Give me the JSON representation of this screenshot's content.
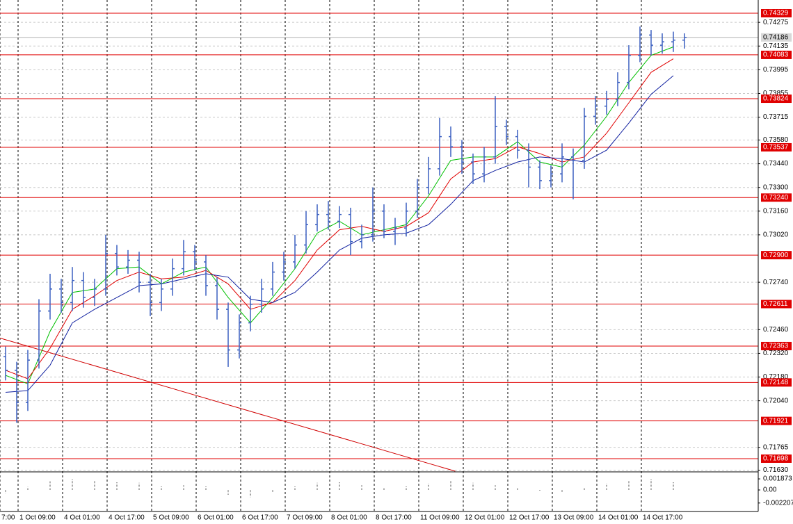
{
  "chart_data": {
    "type": "ohlc",
    "color": "#3a5fc0",
    "open": [
      0.723,
      0.7222,
      0.7203,
      0.7228,
      0.7257,
      0.727,
      0.7262,
      0.7275,
      0.7265,
      0.727,
      0.7291,
      0.7283,
      0.7287,
      0.7274,
      0.7262,
      0.727,
      0.7282,
      0.7292,
      0.7286,
      0.7272,
      0.7258,
      0.7234,
      0.725,
      0.7261,
      0.727,
      0.728,
      0.7286,
      0.7296,
      0.7308,
      0.7314,
      0.731,
      0.7314,
      0.7298,
      0.7302,
      0.7316,
      0.7304,
      0.7306,
      0.7316,
      0.733,
      0.7341,
      0.736,
      0.7354,
      0.7345,
      0.7338,
      0.7348,
      0.7366,
      0.736,
      0.7352,
      0.7342,
      0.7334,
      0.7338,
      0.7348,
      0.7346,
      0.7372,
      0.7378,
      0.7382,
      0.7392,
      0.7408,
      0.742,
      0.7414,
      0.7416,
      0.7417
    ],
    "high": [
      0.7236,
      0.7227,
      0.7234,
      0.7264,
      0.7279,
      0.7276,
      0.7283,
      0.728,
      0.7276,
      0.7302,
      0.7296,
      0.7293,
      0.7292,
      0.7279,
      0.7276,
      0.7288,
      0.7299,
      0.7296,
      0.729,
      0.7277,
      0.7262,
      0.7255,
      0.7266,
      0.7276,
      0.7286,
      0.7292,
      0.7302,
      0.7316,
      0.732,
      0.7322,
      0.7319,
      0.7318,
      0.7308,
      0.733,
      0.732,
      0.7312,
      0.7321,
      0.7335,
      0.7348,
      0.7371,
      0.7366,
      0.7358,
      0.735,
      0.7354,
      0.7384,
      0.737,
      0.7364,
      0.7356,
      0.7346,
      0.7343,
      0.7356,
      0.7353,
      0.7377,
      0.7384,
      0.7387,
      0.7398,
      0.7414,
      0.7425,
      0.7423,
      0.7421,
      0.7422,
      0.7421
    ],
    "low": [
      0.7216,
      0.7191,
      0.7198,
      0.7223,
      0.7252,
      0.7256,
      0.7257,
      0.7259,
      0.726,
      0.7266,
      0.7278,
      0.7279,
      0.7268,
      0.7254,
      0.7257,
      0.7266,
      0.7278,
      0.7281,
      0.7266,
      0.7252,
      0.7224,
      0.7229,
      0.7245,
      0.7256,
      0.7266,
      0.7275,
      0.7282,
      0.7291,
      0.7304,
      0.7305,
      0.7306,
      0.729,
      0.7294,
      0.7298,
      0.73,
      0.7296,
      0.7301,
      0.7312,
      0.7326,
      0.7337,
      0.7348,
      0.7338,
      0.7332,
      0.7333,
      0.7344,
      0.7355,
      0.7347,
      0.733,
      0.7329,
      0.733,
      0.7333,
      0.7323,
      0.7341,
      0.7367,
      0.7373,
      0.7378,
      0.7388,
      0.7404,
      0.7408,
      0.7409,
      0.741,
      0.7412
    ],
    "close": [
      0.7222,
      0.7203,
      0.7228,
      0.7257,
      0.727,
      0.7262,
      0.7275,
      0.7265,
      0.727,
      0.7291,
      0.7283,
      0.7287,
      0.7274,
      0.7262,
      0.727,
      0.7282,
      0.7292,
      0.7286,
      0.7272,
      0.7258,
      0.7234,
      0.725,
      0.7261,
      0.727,
      0.728,
      0.7286,
      0.7296,
      0.7308,
      0.7314,
      0.731,
      0.7314,
      0.7298,
      0.7302,
      0.7316,
      0.7304,
      0.7306,
      0.7316,
      0.733,
      0.7341,
      0.736,
      0.7354,
      0.7345,
      0.7338,
      0.7348,
      0.7366,
      0.736,
      0.7352,
      0.7342,
      0.7334,
      0.7338,
      0.7348,
      0.7346,
      0.7372,
      0.7378,
      0.7382,
      0.7392,
      0.7408,
      0.742,
      0.7414,
      0.7416,
      0.7417,
      0.74186
    ],
    "xlim": [
      -0.5,
      67.625
    ],
    "xticks": [
      {
        "value": -0.5,
        "label": "7:00"
      },
      {
        "value": 1.125,
        "label": "1 Oct 09:00"
      },
      {
        "value": 5.125,
        "label": "4 Oct 01:00"
      },
      {
        "value": 9.125,
        "label": "4 Oct 17:00"
      },
      {
        "value": 13.125,
        "label": "5 Oct 09:00"
      },
      {
        "value": 17.125,
        "label": "6 Oct 01:00"
      },
      {
        "value": 21.125,
        "label": "6 Oct 17:00"
      },
      {
        "value": 25.125,
        "label": "7 Oct 09:00"
      },
      {
        "value": 29.125,
        "label": "8 Oct 01:00"
      },
      {
        "value": 33.125,
        "label": "8 Oct 17:00"
      },
      {
        "value": 37.125,
        "label": "11 Oct 09:00"
      },
      {
        "value": 41.125,
        "label": "12 Oct 01:00"
      },
      {
        "value": 45.125,
        "label": "12 Oct 17:00"
      },
      {
        "value": 49.125,
        "label": "13 Oct 09:00"
      },
      {
        "value": 53.125,
        "label": "14 Oct 01:00"
      },
      {
        "value": 57.125,
        "label": "14 Oct 17:00"
      }
    ],
    "ylim": [
      0.71624,
      0.74407
    ],
    "yticks": [
      0.74275,
      0.74135,
      0.73995,
      0.73855,
      0.73715,
      {
        "value": 0.7358,
        "label": "0.73580"
      },
      {
        "value": 0.7344,
        "label": "0.73440"
      },
      {
        "value": 0.733,
        "label": "0.73300"
      },
      {
        "value": 0.7316,
        "label": "0.73160"
      },
      {
        "value": 0.7302,
        "label": "0.73020"
      },
      {
        "value": 0.7274,
        "label": "0.72740"
      },
      {
        "value": 0.7246,
        "label": "0.72460"
      },
      {
        "value": 0.7232,
        "label": "0.72320"
      },
      {
        "value": 0.7218,
        "label": "0.72180"
      },
      {
        "value": 0.7204,
        "label": "0.72040"
      },
      0.71765,
      {
        "value": 0.7163,
        "label": "0.71630"
      }
    ],
    "grid": true,
    "lines": [
      {
        "color": "#00c000",
        "x": [
          0,
          2,
          4,
          6,
          8,
          10,
          12,
          14,
          16,
          18,
          20,
          22,
          24,
          26,
          28,
          30,
          32,
          34,
          36,
          38,
          40,
          42,
          44,
          46,
          48,
          50,
          52,
          54,
          56,
          58,
          60
        ],
        "values": [
          0.7219,
          0.7214,
          0.7245,
          0.7268,
          0.727,
          0.7282,
          0.7283,
          0.7273,
          0.728,
          0.7283,
          0.7265,
          0.725,
          0.7265,
          0.7282,
          0.7303,
          0.731,
          0.7302,
          0.7305,
          0.7308,
          0.7325,
          0.7346,
          0.7348,
          0.7348,
          0.7357,
          0.7345,
          0.7342,
          0.7355,
          0.7372,
          0.7392,
          0.7408,
          0.7413
        ]
      },
      {
        "color": "#e00000",
        "x": [
          0,
          2,
          4,
          6,
          8,
          10,
          12,
          14,
          16,
          18,
          20,
          22,
          24,
          26,
          28,
          30,
          32,
          34,
          36,
          38,
          40,
          42,
          44,
          46,
          48,
          50,
          52,
          54,
          56,
          58,
          60
        ],
        "values": [
          0.7222,
          0.7217,
          0.7235,
          0.7258,
          0.7266,
          0.7275,
          0.728,
          0.7276,
          0.7277,
          0.7281,
          0.7273,
          0.7258,
          0.7262,
          0.7275,
          0.7293,
          0.7305,
          0.7307,
          0.7304,
          0.7307,
          0.7315,
          0.7335,
          0.7345,
          0.7347,
          0.7354,
          0.735,
          0.7345,
          0.7348,
          0.7362,
          0.738,
          0.7398,
          0.7406
        ]
      },
      {
        "color": "#1020a0",
        "x": [
          0,
          2,
          4,
          6,
          8,
          10,
          12,
          14,
          16,
          18,
          20,
          22,
          24,
          26,
          28,
          30,
          32,
          34,
          36,
          38,
          40,
          42,
          44,
          46,
          48,
          50,
          52,
          54,
          56,
          58,
          60
        ],
        "values": [
          0.7209,
          0.721,
          0.7225,
          0.725,
          0.7258,
          0.7265,
          0.7272,
          0.7273,
          0.7276,
          0.7279,
          0.7277,
          0.7264,
          0.7262,
          0.7268,
          0.728,
          0.7293,
          0.73,
          0.7302,
          0.7303,
          0.7308,
          0.732,
          0.7334,
          0.734,
          0.7345,
          0.7348,
          0.7347,
          0.7345,
          0.7352,
          0.7368,
          0.7385,
          0.7396
        ]
      }
    ],
    "trendline": {
      "color": "#d00000",
      "x": [
        -0.5,
        40.4
      ],
      "values": [
        0.7241,
        0.71624
      ]
    },
    "level_color": "#e00000",
    "levels": [
      0.74329,
      0.74083,
      0.73824,
      0.73537,
      {
        "value": 0.7324,
        "label": "0.73240"
      },
      {
        "value": 0.729,
        "label": "0.72900"
      },
      0.72611,
      0.72363,
      0.72148,
      0.71921,
      0.71698
    ],
    "current_price": 0.74186,
    "oscillator": {
      "color": "#808080",
      "ylim": [
        -0.00364,
        0.00294
      ],
      "yticks": [
        0.001873,
        {
          "value": 0,
          "label": "0.00"
        },
        -0.002207
      ],
      "x": [
        0,
        2,
        4,
        6,
        8,
        10,
        12,
        14,
        16,
        18,
        20,
        22,
        24,
        26,
        28,
        30,
        32,
        34,
        36,
        38,
        40,
        42,
        44,
        46,
        48,
        50,
        52,
        54,
        56,
        58,
        60
      ],
      "values": [
        -0.0005,
        0.0005,
        0.0015,
        0.0018,
        0.0016,
        0.0014,
        0.0012,
        0.0006,
        0.0008,
        0.0006,
        -0.0008,
        -0.0012,
        -0.0004,
        0.0006,
        0.0012,
        0.0014,
        0.0008,
        0.0004,
        0.0006,
        0.001,
        0.0016,
        0.0012,
        0.0008,
        0.0004,
        -0.0002,
        -0.0004,
        0.0004,
        0.001,
        0.0016,
        0.0018,
        0.0014
      ]
    }
  }
}
